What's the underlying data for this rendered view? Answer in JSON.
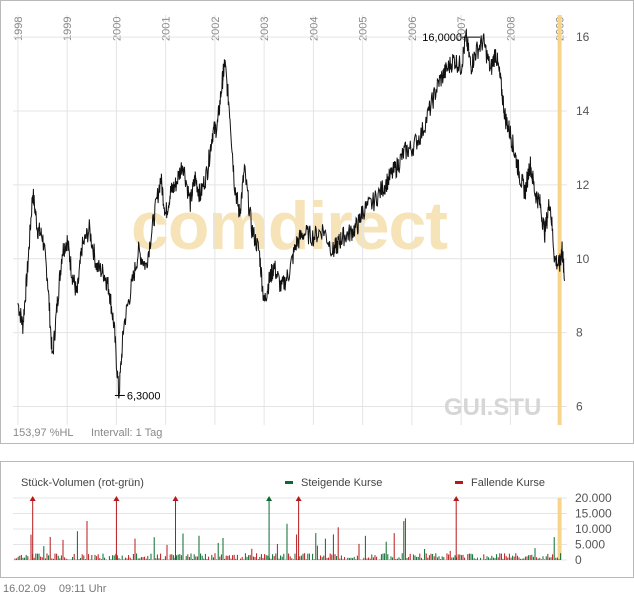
{
  "chart_data": [
    {
      "type": "line",
      "years": [
        "1998",
        "1999",
        "2000",
        "2001",
        "2002",
        "2003",
        "2004",
        "2005",
        "2006",
        "2007",
        "2008",
        "2009"
      ],
      "yticks": [
        "6",
        "8",
        "10",
        "12",
        "14",
        "16"
      ],
      "ylim": [
        5.5,
        16.6
      ],
      "xlim": [
        1997.9,
        2009.15
      ],
      "max_label": "16,0000",
      "min_label": "6,3000",
      "max_point": {
        "x": 2007.1,
        "y": 16.0
      },
      "min_point": {
        "x": 2000.05,
        "y": 6.3
      },
      "watermark": "comdirect",
      "symbol": "GUI.STU",
      "footer_left": "153,97 %HL",
      "footer_interval": "Intervall: 1 Tag",
      "series": [
        {
          "x": [
            1998.0,
            1998.1,
            1998.2,
            1998.3,
            1998.4,
            1998.5,
            1998.6,
            1998.7,
            1998.8,
            1998.9,
            1999.0,
            1999.1,
            1999.2,
            1999.3,
            1999.45,
            1999.6,
            1999.75,
            1999.85,
            1999.95,
            2000.05,
            2000.15,
            2000.3,
            2000.45,
            2000.6,
            2000.75,
            2000.9,
            2001.0,
            2001.1,
            2001.2,
            2001.35,
            2001.5,
            2001.6,
            2001.7,
            2001.85,
            2001.95,
            2002.05,
            2002.15,
            2002.2,
            2002.3,
            2002.4,
            2002.5,
            2002.6,
            2002.75,
            2002.9,
            2003.0,
            2003.1,
            2003.2,
            2003.35,
            2003.5,
            2003.65,
            2003.8,
            2004.0,
            2004.2,
            2004.4,
            2004.5,
            2004.6,
            2004.75,
            2004.9,
            2005.0,
            2005.2,
            2005.4,
            2005.55,
            2005.7,
            2005.85,
            2006.0,
            2006.2,
            2006.4,
            2006.55,
            2006.7,
            2006.85,
            2007.0,
            2007.1,
            2007.2,
            2007.3,
            2007.45,
            2007.6,
            2007.7,
            2007.8,
            2007.9,
            2008.0,
            2008.1,
            2008.2,
            2008.3,
            2008.4,
            2008.5,
            2008.6,
            2008.7,
            2008.8,
            2008.9,
            2009.0,
            2009.05,
            2009.1
          ],
          "values": [
            8.8,
            8.2,
            9.8,
            11.8,
            10.8,
            10.6,
            9.5,
            7.3,
            8.8,
            10.2,
            10.5,
            9.6,
            9.0,
            10.3,
            10.8,
            9.8,
            9.6,
            9.2,
            8.2,
            6.3,
            8.2,
            9.2,
            10.2,
            9.8,
            11.0,
            12.2,
            11.2,
            11.8,
            12.0,
            12.6,
            11.5,
            12.2,
            11.7,
            12.4,
            13.4,
            13.6,
            14.8,
            15.3,
            14.0,
            12.0,
            11.2,
            12.4,
            10.8,
            10.2,
            8.8,
            9.4,
            9.8,
            9.2,
            9.6,
            10.4,
            10.7,
            10.6,
            10.8,
            10.2,
            10.4,
            10.6,
            10.7,
            10.9,
            11.3,
            11.5,
            11.9,
            12.2,
            12.5,
            12.9,
            13.0,
            13.4,
            14.2,
            14.8,
            15.1,
            15.4,
            15.2,
            16.0,
            15.2,
            15.6,
            15.9,
            15.1,
            15.6,
            14.8,
            13.8,
            13.4,
            12.8,
            12.2,
            11.8,
            12.6,
            11.8,
            11.5,
            10.7,
            11.6,
            10.0,
            9.8,
            10.3,
            9.4
          ]
        }
      ]
    },
    {
      "type": "bar",
      "title": "Stück-Volumen (rot-grün)",
      "legend": [
        {
          "label": "Steigende Kurse",
          "color": "#0a6b2e"
        },
        {
          "label": "Fallende Kurse",
          "color": "#b8181b"
        }
      ],
      "yticks": [
        "0",
        "5.000",
        "10.000",
        "15.000",
        "20.000"
      ],
      "ylim": [
        0,
        20000
      ],
      "xlim": [
        1997.9,
        2009.15
      ],
      "spikes": [
        {
          "x": 1998.3,
          "value": 21000,
          "dir": "down"
        },
        {
          "x": 2000.0,
          "value": 20500,
          "dir": "down"
        },
        {
          "x": 2001.2,
          "value": 20500,
          "dir": "down"
        },
        {
          "x": 2003.1,
          "value": 20000,
          "dir": "up"
        },
        {
          "x": 2003.7,
          "value": 20200,
          "dir": "down"
        },
        {
          "x": 2006.9,
          "value": 16000,
          "dir": "down"
        }
      ]
    }
  ],
  "footer": {
    "date": "16.02.09",
    "time": "09:11 Uhr"
  },
  "colors": {
    "line": "#111111",
    "grid": "#e4e4e4",
    "highlight": "#f6d58a",
    "up": "#0a6b2e",
    "down": "#b8181b"
  }
}
